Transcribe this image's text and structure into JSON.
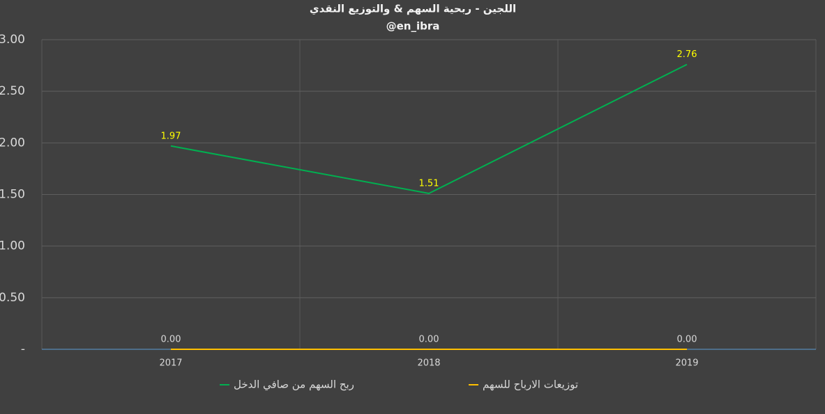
{
  "chart_data": {
    "type": "line",
    "title": "اللجين - ربحية السهم & والتوزيع النقدي",
    "subtitle": "@en_ibra",
    "categories": [
      "2017",
      "2018",
      "2019"
    ],
    "series": [
      {
        "name": "ربح السهم من صافي الدخل",
        "color": "#00b050",
        "values": [
          1.97,
          1.51,
          2.76
        ],
        "value_labels": [
          "1.97",
          "1.51",
          "2.76"
        ],
        "label_color": "#ffff00"
      },
      {
        "name": "توزيعات الارباح للسهم",
        "color": "#ffc000",
        "values": [
          0,
          0,
          0
        ],
        "value_labels": [
          "0.00",
          "0.00",
          "0.00"
        ],
        "label_color": "#d9d9d9"
      }
    ],
    "ylim": [
      0,
      3
    ],
    "yticks": [
      {
        "value": 0,
        "label": "-"
      },
      {
        "value": 0.5,
        "label": "0.50"
      },
      {
        "value": 1,
        "label": "1.00"
      },
      {
        "value": 1.5,
        "label": "1.50"
      },
      {
        "value": 2,
        "label": "2.00"
      },
      {
        "value": 2.5,
        "label": "2.50"
      },
      {
        "value": 3,
        "label": "3.00"
      }
    ],
    "grid": true
  }
}
